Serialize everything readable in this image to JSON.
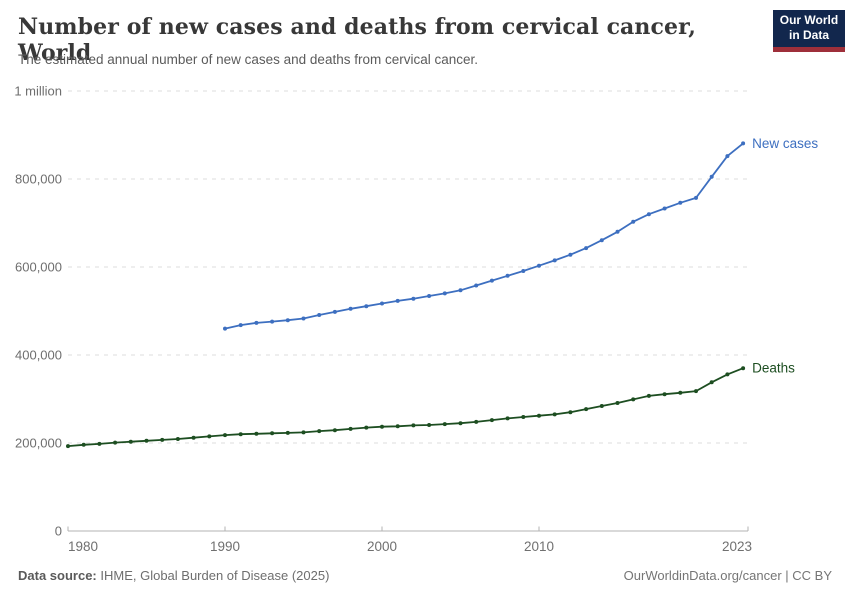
{
  "header": {
    "title": "Number of new cases and deaths from cervical cancer, World",
    "subtitle": "The estimated annual number of new cases and deaths from cervical cancer."
  },
  "logo": {
    "line1": "Our World",
    "line2": "in Data",
    "bg_color": "#12274d",
    "stripe_color": "#9e2f3a",
    "text_color": "#ffffff"
  },
  "footer": {
    "datasource_label": "Data source:",
    "datasource_value": " IHME, Global Burden of Disease (2025)",
    "rights": "OurWorldinData.org/cancer | CC BY"
  },
  "chart_data": {
    "type": "line",
    "title": "Number of new cases and deaths from cervical cancer, World",
    "xlabel": "",
    "ylabel": "",
    "xlim": [
      1980,
      2023
    ],
    "ylim": [
      0,
      1000000
    ],
    "grid": "horizontal-dashed",
    "legend_position": "end-of-line-labels",
    "markers": true,
    "y_ticks": [
      {
        "value": 0,
        "label": "0"
      },
      {
        "value": 200000,
        "label": "200,000"
      },
      {
        "value": 400000,
        "label": "400,000"
      },
      {
        "value": 600000,
        "label": "600,000"
      },
      {
        "value": 800000,
        "label": "800,000"
      },
      {
        "value": 1000000,
        "label": "1 million"
      }
    ],
    "x_ticks": [
      {
        "year": 1980,
        "label": "1980",
        "anchor": "start"
      },
      {
        "year": 1990,
        "label": "1990",
        "anchor": "middle"
      },
      {
        "year": 2000,
        "label": "2000",
        "anchor": "middle"
      },
      {
        "year": 2010,
        "label": "2010",
        "anchor": "middle"
      },
      {
        "year": 2023,
        "label": "2023",
        "anchor": "end"
      }
    ],
    "series": [
      {
        "name": "New cases",
        "color": "#3d6fc0",
        "start_year": 1990,
        "end_year": 2023,
        "values": [
          460000,
          468000,
          473000,
          476000,
          479000,
          483000,
          491000,
          498000,
          505000,
          511000,
          517000,
          523000,
          528000,
          534000,
          540000,
          547000,
          558000,
          569000,
          580000,
          591000,
          603000,
          615000,
          628000,
          643000,
          661000,
          680000,
          703000,
          720000,
          733000,
          746000,
          757000,
          805000,
          852000,
          881000
        ]
      },
      {
        "name": "Deaths",
        "color": "#1d4e21",
        "start_year": 1980,
        "end_year": 2023,
        "values": [
          193000,
          196000,
          198000,
          201000,
          203000,
          205000,
          207000,
          209000,
          212000,
          215000,
          218000,
          220000,
          221000,
          222000,
          223000,
          224000,
          227000,
          229000,
          232000,
          235000,
          237000,
          238000,
          240000,
          241000,
          243000,
          245000,
          248000,
          252000,
          256000,
          259000,
          262000,
          265000,
          270000,
          277000,
          284000,
          291000,
          299000,
          307000,
          311000,
          314000,
          318000,
          338000,
          356000,
          370000
        ]
      }
    ]
  }
}
